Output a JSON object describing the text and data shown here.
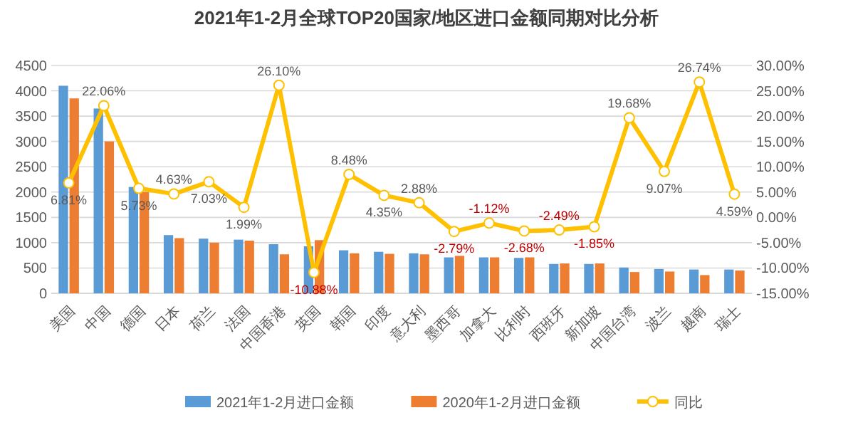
{
  "chart_data": {
    "type": "bar",
    "title": "2021年1-2月全球TOP20国家/地区进口金额同期对比分析",
    "categories": [
      "美国",
      "中国",
      "德国",
      "日本",
      "荷兰",
      "法国",
      "中国香港",
      "英国",
      "韩国",
      "印度",
      "意大利",
      "墨西哥",
      "加拿大",
      "比利时",
      "西班牙",
      "新加坡",
      "中国台湾",
      "波兰",
      "越南",
      "瑞士"
    ],
    "series": [
      {
        "name": "2021年1-2月进口金额",
        "color": "#5b9bd5",
        "values": [
          4100,
          3650,
          2100,
          1150,
          1080,
          1060,
          970,
          930,
          850,
          820,
          790,
          710,
          710,
          700,
          580,
          580,
          510,
          480,
          470,
          470
        ]
      },
      {
        "name": "2020年1-2月进口金额",
        "color": "#ed7d31",
        "values": [
          3850,
          3000,
          2000,
          1090,
          1000,
          1040,
          770,
          1050,
          790,
          780,
          770,
          740,
          710,
          710,
          590,
          590,
          420,
          430,
          360,
          450
        ]
      },
      {
        "name": "同比",
        "type": "line",
        "axis": "y2",
        "color": "#ffc000",
        "marker": "circle",
        "values": [
          6.81,
          22.06,
          5.73,
          4.63,
          7.03,
          1.99,
          26.1,
          -10.88,
          8.48,
          4.35,
          2.88,
          -2.79,
          -1.12,
          -2.68,
          -2.49,
          -1.85,
          19.68,
          9.07,
          26.74,
          4.59
        ],
        "value_labels": [
          "6.81%",
          "22.06%",
          "5.73%",
          "4.63%",
          "7.03%",
          "1.99%",
          "26.10%",
          "-10.88%",
          "8.48%",
          "4.35%",
          "2.88%",
          "-2.79%",
          "-1.12%",
          "-2.68%",
          "-2.49%",
          "-1.85%",
          "19.68%",
          "9.07%",
          "26.74%",
          "4.59%"
        ]
      }
    ],
    "ylim": [
      0,
      4500
    ],
    "yticks": [
      0,
      500,
      1000,
      1500,
      2000,
      2500,
      3000,
      3500,
      4000,
      4500
    ],
    "y2lim": [
      -15,
      30
    ],
    "y2ticks": [
      {
        "value": -15,
        "label": "-15.00%"
      },
      {
        "value": -10,
        "label": "-10.00%"
      },
      {
        "value": -5,
        "label": "-5.00%"
      },
      {
        "value": 0,
        "label": "0.00%"
      },
      {
        "value": 5,
        "label": "5.00%"
      },
      {
        "value": 10,
        "label": "10.00%"
      },
      {
        "value": 15,
        "label": "15.00%"
      },
      {
        "value": 20,
        "label": "20.00%"
      },
      {
        "value": 25,
        "label": "25.00%"
      },
      {
        "value": 30,
        "label": "30.00%"
      }
    ],
    "grid": "y",
    "legend": "bottom"
  }
}
